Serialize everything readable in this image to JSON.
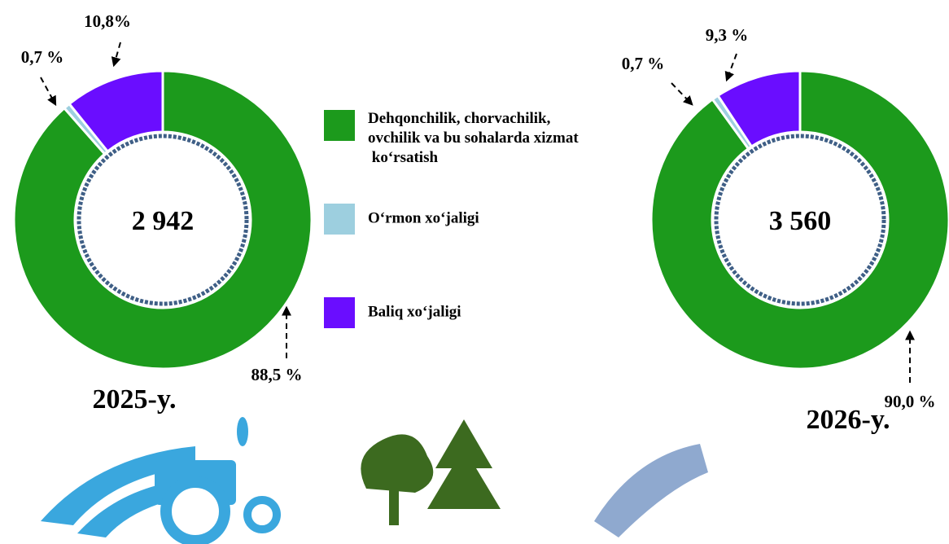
{
  "chart_data": [
    {
      "type": "pie",
      "title": "2025-y.",
      "categories": [
        "Dehqonchilik, chorvachilik, ovchilik va bu sohalarda xizmat ko‘rsatish",
        "O‘rmon xo‘jaligi",
        "Baliq xo‘jaligi"
      ],
      "colors": [
        "#1c9a1c",
        "#9dcfdf",
        "#6a0dff"
      ],
      "values": [
        88.5,
        0.7,
        10.8
      ],
      "value_labels": [
        "88,5 %",
        "0,7 %",
        "10,8%"
      ],
      "total": {
        "value": 2942,
        "label": "2 942"
      }
    },
    {
      "type": "pie",
      "title": "2026-y.",
      "values": [
        90.0,
        0.7,
        9.3
      ],
      "value_labels": [
        "90,0 %",
        "0,7 %",
        "9,3 %"
      ],
      "total": {
        "value": 3560,
        "label": "3 560"
      }
    }
  ]
}
